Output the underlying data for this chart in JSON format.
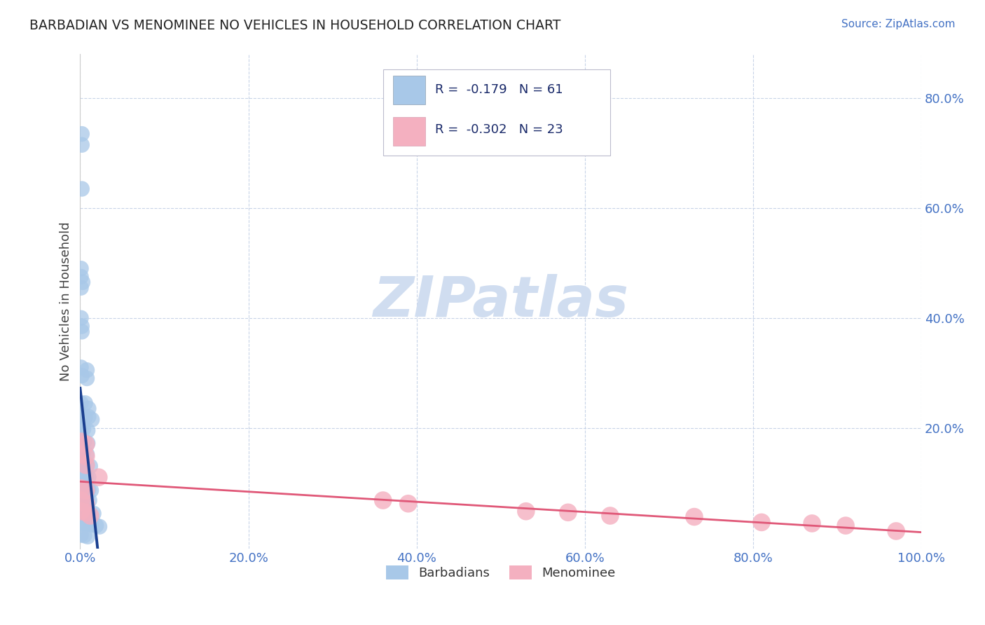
{
  "title": "BARBADIAN VS MENOMINEE NO VEHICLES IN HOUSEHOLD CORRELATION CHART",
  "source": "Source: ZipAtlas.com",
  "ylabel": "No Vehicles in Household",
  "xlim": [
    0.0,
    1.0
  ],
  "ylim": [
    -0.02,
    0.88
  ],
  "blue_R": -0.179,
  "blue_N": 61,
  "pink_R": -0.302,
  "pink_N": 23,
  "blue_color": "#a8c8e8",
  "pink_color": "#f4b0c0",
  "blue_line_color": "#1a3f8f",
  "pink_line_color": "#e05878",
  "blue_scatter": [
    [
      0.002,
      0.735
    ],
    [
      0.002,
      0.715
    ],
    [
      0.002,
      0.635
    ],
    [
      0.001,
      0.49
    ],
    [
      0.001,
      0.475
    ],
    [
      0.003,
      0.465
    ],
    [
      0.001,
      0.455
    ],
    [
      0.001,
      0.4
    ],
    [
      0.002,
      0.385
    ],
    [
      0.002,
      0.375
    ],
    [
      0.001,
      0.31
    ],
    [
      0.002,
      0.295
    ],
    [
      0.008,
      0.305
    ],
    [
      0.008,
      0.29
    ],
    [
      0.001,
      0.245
    ],
    [
      0.006,
      0.245
    ],
    [
      0.01,
      0.235
    ],
    [
      0.001,
      0.22
    ],
    [
      0.006,
      0.22
    ],
    [
      0.01,
      0.22
    ],
    [
      0.014,
      0.215
    ],
    [
      0.001,
      0.198
    ],
    [
      0.004,
      0.198
    ],
    [
      0.009,
      0.195
    ],
    [
      0.001,
      0.178
    ],
    [
      0.005,
      0.175
    ],
    [
      0.009,
      0.172
    ],
    [
      0.001,
      0.155
    ],
    [
      0.004,
      0.155
    ],
    [
      0.008,
      0.152
    ],
    [
      0.001,
      0.135
    ],
    [
      0.004,
      0.135
    ],
    [
      0.008,
      0.132
    ],
    [
      0.012,
      0.13
    ],
    [
      0.001,
      0.115
    ],
    [
      0.004,
      0.112
    ],
    [
      0.007,
      0.112
    ],
    [
      0.01,
      0.11
    ],
    [
      0.001,
      0.092
    ],
    [
      0.004,
      0.09
    ],
    [
      0.007,
      0.09
    ],
    [
      0.01,
      0.088
    ],
    [
      0.013,
      0.086
    ],
    [
      0.001,
      0.072
    ],
    [
      0.004,
      0.07
    ],
    [
      0.008,
      0.07
    ],
    [
      0.011,
      0.068
    ],
    [
      0.001,
      0.05
    ],
    [
      0.004,
      0.048
    ],
    [
      0.008,
      0.048
    ],
    [
      0.011,
      0.046
    ],
    [
      0.016,
      0.044
    ],
    [
      0.001,
      0.028
    ],
    [
      0.004,
      0.026
    ],
    [
      0.008,
      0.026
    ],
    [
      0.013,
      0.024
    ],
    [
      0.019,
      0.022
    ],
    [
      0.023,
      0.02
    ],
    [
      0.001,
      0.005
    ],
    [
      0.005,
      0.004
    ],
    [
      0.009,
      0.002
    ]
  ],
  "pink_scatter": [
    [
      0.001,
      0.175
    ],
    [
      0.007,
      0.17
    ],
    [
      0.001,
      0.152
    ],
    [
      0.007,
      0.148
    ],
    [
      0.007,
      0.132
    ],
    [
      0.022,
      0.11
    ],
    [
      0.001,
      0.09
    ],
    [
      0.007,
      0.086
    ],
    [
      0.001,
      0.068
    ],
    [
      0.007,
      0.062
    ],
    [
      0.001,
      0.048
    ],
    [
      0.007,
      0.046
    ],
    [
      0.012,
      0.04
    ],
    [
      0.36,
      0.068
    ],
    [
      0.39,
      0.062
    ],
    [
      0.53,
      0.048
    ],
    [
      0.58,
      0.046
    ],
    [
      0.63,
      0.04
    ],
    [
      0.73,
      0.038
    ],
    [
      0.81,
      0.028
    ],
    [
      0.87,
      0.026
    ],
    [
      0.91,
      0.022
    ],
    [
      0.97,
      0.012
    ]
  ],
  "xtick_labels": [
    "0.0%",
    "20.0%",
    "40.0%",
    "60.0%",
    "80.0%",
    "100.0%"
  ],
  "xtick_vals": [
    0.0,
    0.2,
    0.4,
    0.6,
    0.8,
    1.0
  ],
  "ytick_labels": [
    "20.0%",
    "40.0%",
    "60.0%",
    "80.0%"
  ],
  "ytick_vals": [
    0.2,
    0.4,
    0.6,
    0.8
  ],
  "legend_labels": [
    "Barbadians",
    "Menominee"
  ],
  "background_color": "#ffffff",
  "grid_color": "#c8d4e8",
  "watermark_color": "#d0ddf0",
  "tick_color": "#4472c4"
}
